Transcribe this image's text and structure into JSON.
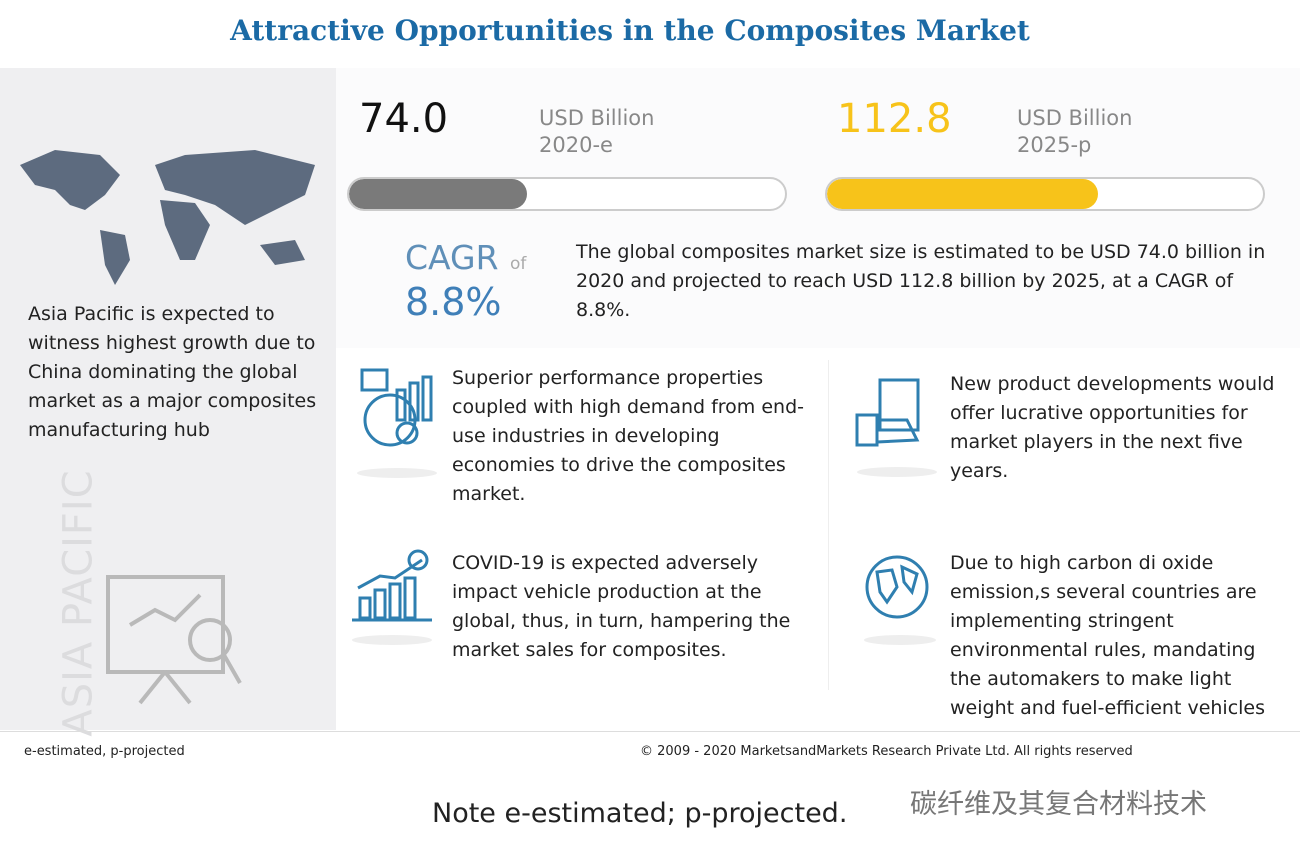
{
  "header": {
    "title": "Attractive Opportunities in the Composites Market"
  },
  "region": {
    "text": "Asia Pacific is expected to witness highest growth due to China dominating the global market as a major composites manufacturing hub",
    "watermark": "ASIA PACIFIC"
  },
  "metrics": [
    {
      "value": {
        "value": 74.0,
        "label": "74.0"
      },
      "unit": "USD Billion",
      "year": "2020-e",
      "color": "#7a7a7a"
    },
    {
      "value": {
        "value": 112.8,
        "label": "112.8"
      },
      "unit": "USD Billion",
      "year": "2025-p",
      "color": "#f7c31a"
    }
  ],
  "cagr": {
    "label": "CAGR",
    "of": "of",
    "value": "8.8%",
    "text": "The global composites market size is estimated to be USD 74.0 billion in 2020 and projected to reach USD 112.8 billion by 2025, at a CAGR of 8.8%."
  },
  "drivers": [
    "Superior performance properties coupled with high demand from end-use industries in developing economies to drive the composites market.",
    "New product developments would offer lucrative opportunities for market players in the next five years.",
    "COVID-19 is expected adversely impact vehicle production at the global, thus, in turn, hampering the market sales for composites.",
    "Due to high carbon di oxide emission,s several countries are implementing stringent environmental rules, mandating the automakers to make light weight and fuel-efficient vehicles"
  ],
  "footer": {
    "note": "e-estimated, p-projected",
    "copyright": "© 2009 - 2020 MarketsandMarkets Research Private Ltd. All rights reserved"
  },
  "caption": {
    "note": "Note e-estimated; p-projected.",
    "watermark": "碳纤维及其复合材料技术"
  }
}
